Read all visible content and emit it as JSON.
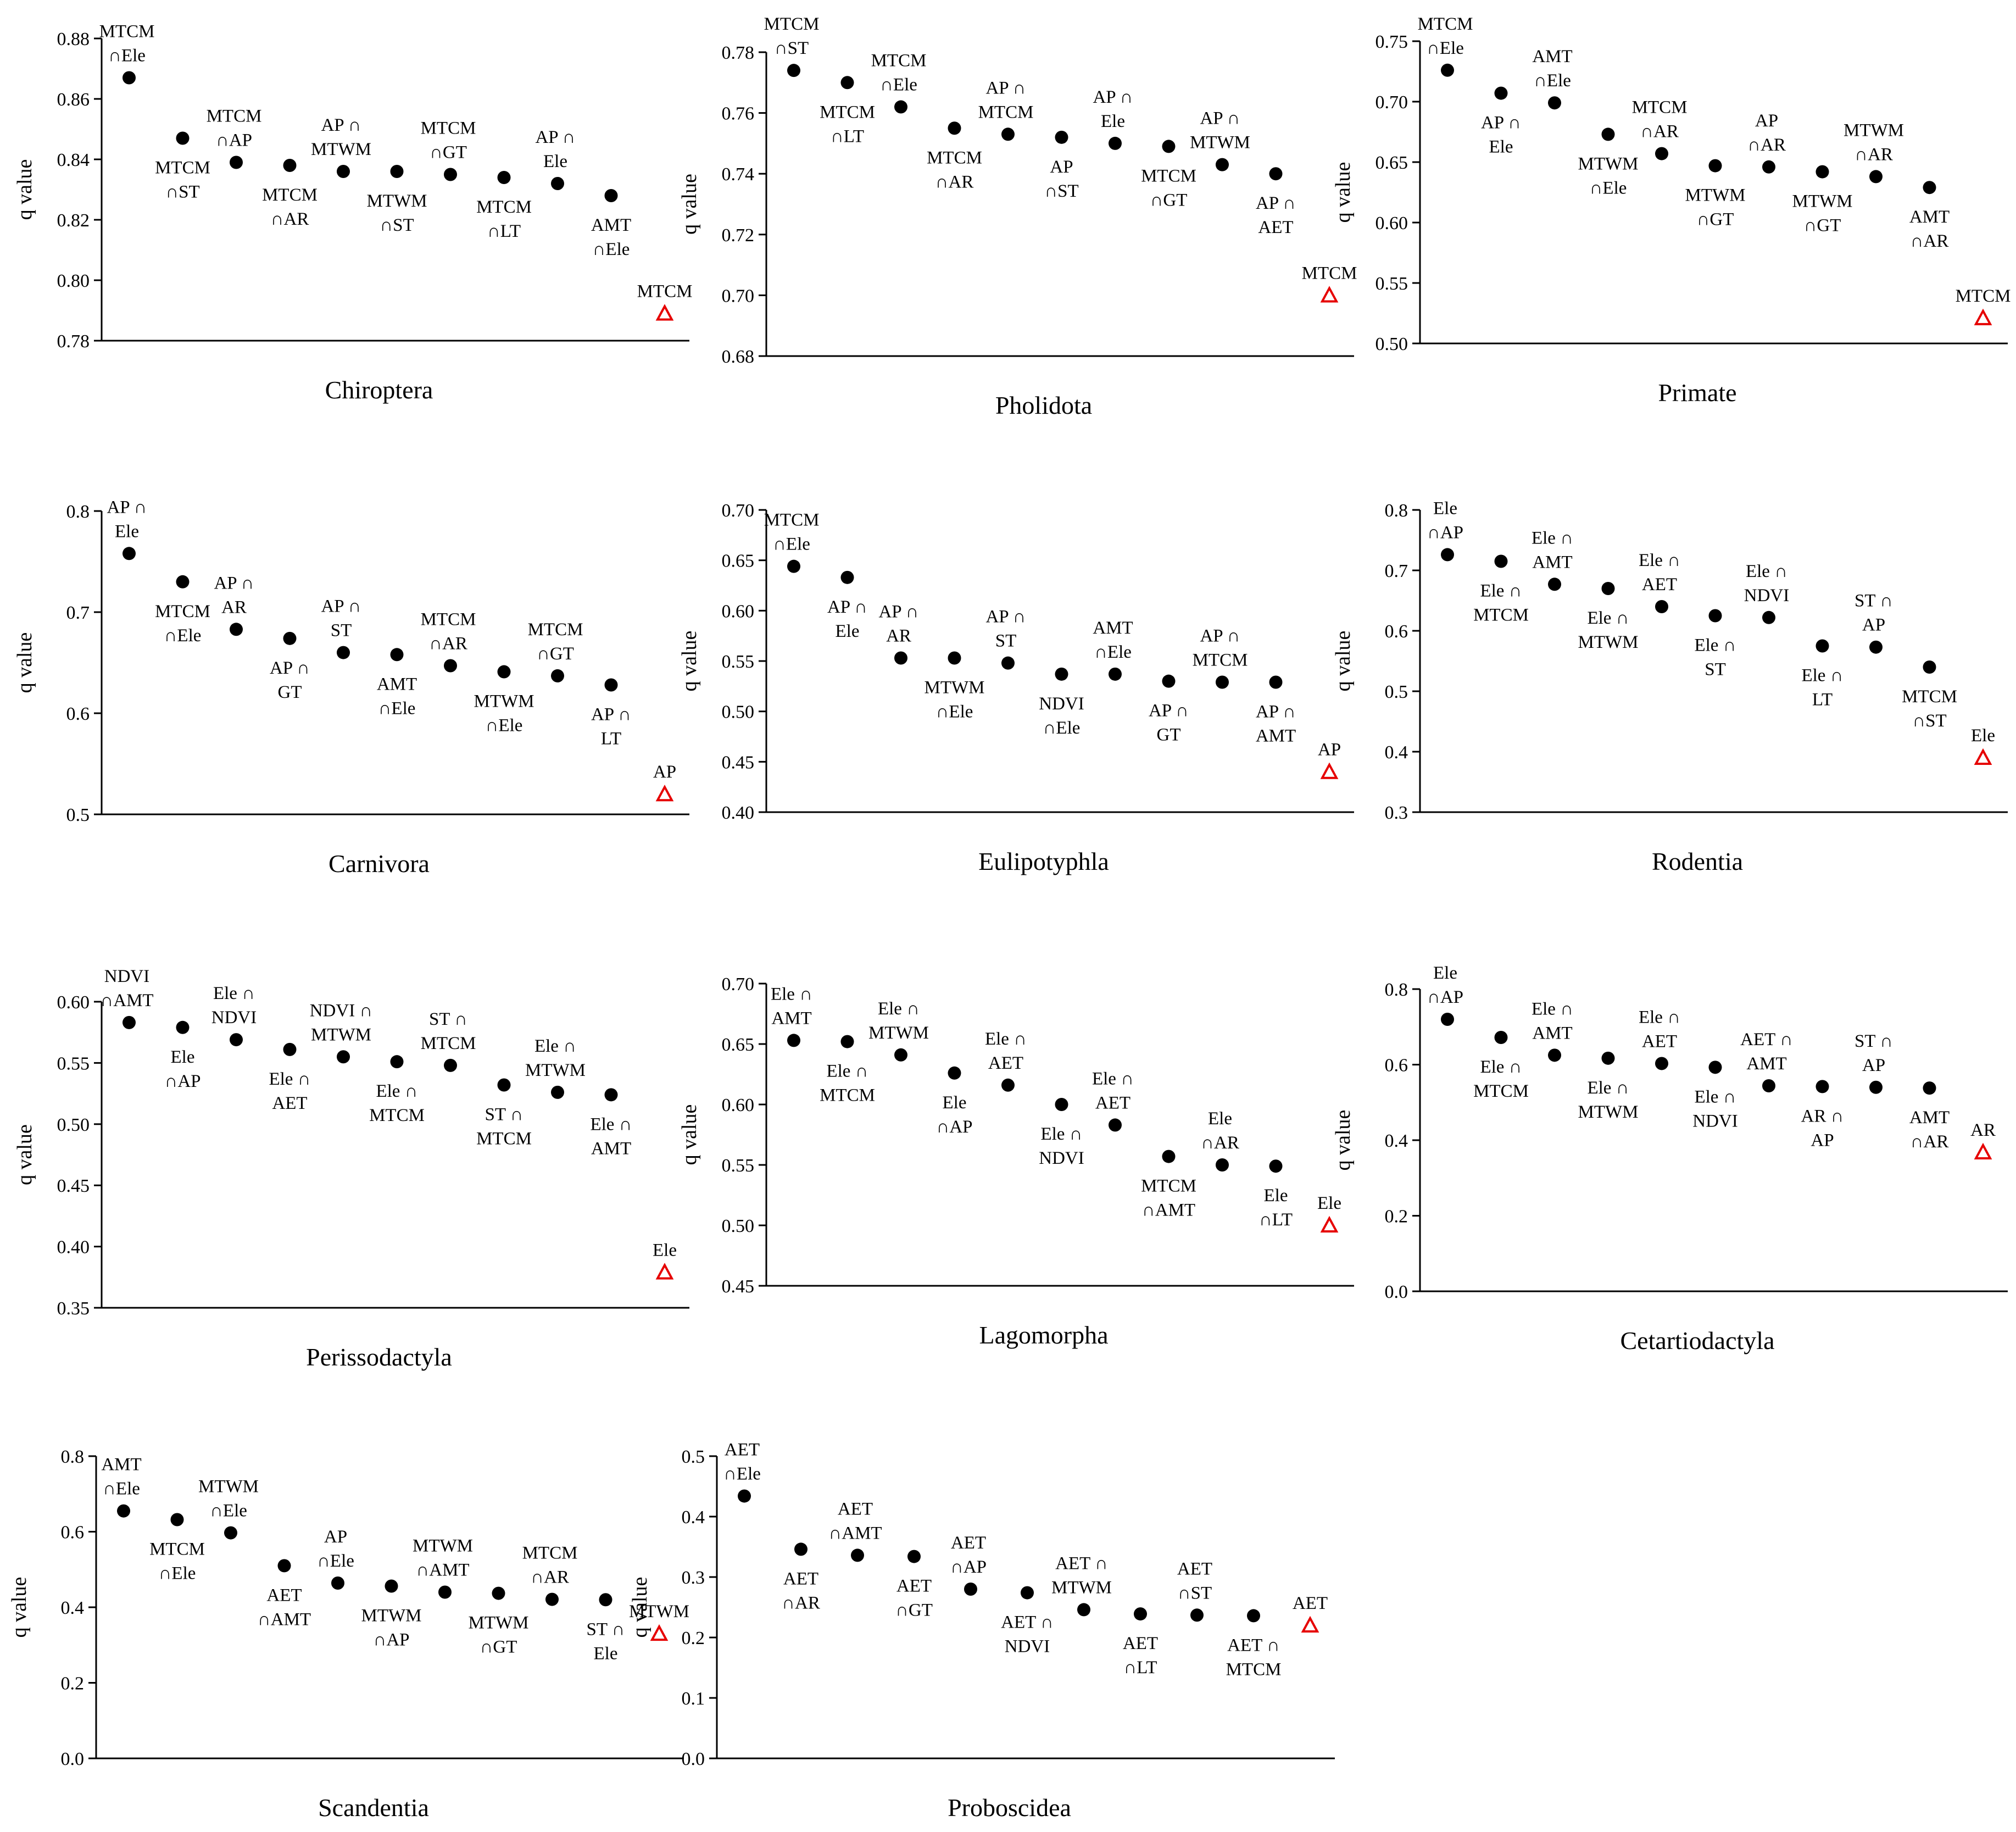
{
  "chart_data": [
    {
      "type": "scatter",
      "title": "Chiroptera",
      "ylabel": "q value",
      "ylim": [
        0.78,
        0.88
      ],
      "yticks": [
        "0.78",
        "0.80",
        "0.82",
        "0.84",
        "0.86",
        "0.88"
      ],
      "points": [
        {
          "label": "MTCM\n∩Ele",
          "value": 0.867
        },
        {
          "label": "MTCM\n∩ST",
          "value": 0.847
        },
        {
          "label": "MTCM\n∩AP",
          "value": 0.839
        },
        {
          "label": "MTCM\n∩AR",
          "value": 0.838
        },
        {
          "label": "AP ∩\nMTWM",
          "value": 0.836
        },
        {
          "label": "MTWM\n∩ST",
          "value": 0.836
        },
        {
          "label": "MTCM\n∩GT",
          "value": 0.835
        },
        {
          "label": "MTCM\n∩LT",
          "value": 0.834
        },
        {
          "label": "AP ∩\nEle",
          "value": 0.832
        },
        {
          "label": "AMT\n∩Ele",
          "value": 0.828
        },
        {
          "label": "MTCM",
          "value": 0.789,
          "single": true
        }
      ]
    },
    {
      "type": "scatter",
      "title": "Pholidota",
      "ylabel": "q value",
      "ylim": [
        0.68,
        0.78
      ],
      "yticks": [
        "0.68",
        "0.70",
        "0.72",
        "0.74",
        "0.76",
        "0.78"
      ],
      "points": [
        {
          "label": "MTCM\n∩ST",
          "value": 0.774
        },
        {
          "label": "MTCM\n∩LT",
          "value": 0.77
        },
        {
          "label": "MTCM\n∩Ele",
          "value": 0.762
        },
        {
          "label": "MTCM\n∩AR",
          "value": 0.755
        },
        {
          "label": "AP ∩\nMTCM",
          "value": 0.753
        },
        {
          "label": "AP\n∩ST",
          "value": 0.752
        },
        {
          "label": "AP ∩\nEle",
          "value": 0.75
        },
        {
          "label": "MTCM\n∩GT",
          "value": 0.749
        },
        {
          "label": "AP ∩\nMTWM",
          "value": 0.743
        },
        {
          "label": "AP ∩\nAET",
          "value": 0.74
        },
        {
          "label": "MTCM",
          "value": 0.7,
          "single": true
        }
      ]
    },
    {
      "type": "scatter",
      "title": "Primate",
      "ylabel": "q value",
      "ylim": [
        0.5,
        0.75
      ],
      "yticks": [
        "0.50",
        "0.55",
        "0.60",
        "0.65",
        "0.70",
        "0.75"
      ],
      "points": [
        {
          "label": "MTCM\n∩Ele",
          "value": 0.726
        },
        {
          "label": "AP ∩\nEle",
          "value": 0.707
        },
        {
          "label": "AMT\n∩Ele",
          "value": 0.699
        },
        {
          "label": "MTWM\n∩Ele",
          "value": 0.673
        },
        {
          "label": "MTCM\n∩AR",
          "value": 0.657
        },
        {
          "label": "MTWM\n∩GT",
          "value": 0.647
        },
        {
          "label": "AP\n∩AR",
          "value": 0.646
        },
        {
          "label": "MTWM\n∩GT",
          "value": 0.642
        },
        {
          "label": "MTWM\n∩AR",
          "value": 0.638
        },
        {
          "label": "AMT\n∩AR",
          "value": 0.629
        },
        {
          "label": "MTCM",
          "value": 0.521,
          "single": true
        }
      ]
    },
    {
      "type": "scatter",
      "title": "Carnivora",
      "ylabel": "q value",
      "ylim": [
        0.5,
        0.8
      ],
      "yticks": [
        "0.5",
        "0.6",
        "0.7",
        "0.8"
      ],
      "points": [
        {
          "label": "AP ∩\nEle",
          "value": 0.758
        },
        {
          "label": "MTCM\n∩Ele",
          "value": 0.73
        },
        {
          "label": "AP ∩\nAR",
          "value": 0.683
        },
        {
          "label": "AP ∩\nGT",
          "value": 0.674
        },
        {
          "label": "AP ∩\nST",
          "value": 0.66
        },
        {
          "label": "AMT\n∩Ele",
          "value": 0.658
        },
        {
          "label": "MTCM\n∩AR",
          "value": 0.647
        },
        {
          "label": "MTWM\n∩Ele",
          "value": 0.641
        },
        {
          "label": "MTCM\n∩GT",
          "value": 0.637
        },
        {
          "label": "AP ∩\nLT",
          "value": 0.628
        },
        {
          "label": "AP",
          "value": 0.52,
          "single": true
        }
      ]
    },
    {
      "type": "scatter",
      "title": "Eulipotyphla",
      "ylabel": "q value",
      "ylim": [
        0.4,
        0.7
      ],
      "yticks": [
        "0.40",
        "0.45",
        "0.50",
        "0.55",
        "0.60",
        "0.65",
        "0.70"
      ],
      "points": [
        {
          "label": "MTCM\n∩Ele",
          "value": 0.644
        },
        {
          "label": "AP ∩\nEle",
          "value": 0.633
        },
        {
          "label": "AP ∩\nAR",
          "value": 0.553
        },
        {
          "label": "MTWM\n∩Ele",
          "value": 0.553
        },
        {
          "label": "AP ∩\nST",
          "value": 0.548
        },
        {
          "label": "NDVI\n∩Ele",
          "value": 0.537
        },
        {
          "label": "AMT\n∩Ele",
          "value": 0.537
        },
        {
          "label": "AP ∩\nGT",
          "value": 0.53
        },
        {
          "label": "AP ∩\nMTCM",
          "value": 0.529
        },
        {
          "label": "AP ∩\nAMT",
          "value": 0.529
        },
        {
          "label": "AP",
          "value": 0.44,
          "single": true
        }
      ]
    },
    {
      "type": "scatter",
      "title": "Rodentia",
      "ylabel": "q value",
      "ylim": [
        0.3,
        0.8
      ],
      "yticks": [
        "0.3",
        "0.4",
        "0.5",
        "0.6",
        "0.7",
        "0.8"
      ],
      "points": [
        {
          "label": "Ele\n∩AP",
          "value": 0.726
        },
        {
          "label": "Ele ∩\nMTCM",
          "value": 0.715
        },
        {
          "label": "Ele ∩\nAMT",
          "value": 0.677
        },
        {
          "label": "Ele ∩\nMTWM",
          "value": 0.67
        },
        {
          "label": "Ele ∩\nAET",
          "value": 0.64
        },
        {
          "label": "Ele ∩\nST",
          "value": 0.625
        },
        {
          "label": "Ele ∩\nNDVI",
          "value": 0.622
        },
        {
          "label": "Ele ∩\nLT",
          "value": 0.575
        },
        {
          "label": "ST ∩\nAP",
          "value": 0.573
        },
        {
          "label": "MTCM\n∩ST",
          "value": 0.54
        },
        {
          "label": "Ele",
          "value": 0.39,
          "single": true
        }
      ]
    },
    {
      "type": "scatter",
      "title": "Perissodactyla",
      "ylabel": "q value",
      "ylim": [
        0.35,
        0.6
      ],
      "yticks": [
        "0.35",
        "0.40",
        "0.45",
        "0.50",
        "0.55",
        "0.60"
      ],
      "points": [
        {
          "label": "NDVI\n∩AMT",
          "value": 0.583
        },
        {
          "label": "Ele\n∩AP",
          "value": 0.579
        },
        {
          "label": "Ele ∩\nNDVI",
          "value": 0.569
        },
        {
          "label": "Ele ∩\nAET",
          "value": 0.561
        },
        {
          "label": "NDVI ∩\nMTWM",
          "value": 0.555
        },
        {
          "label": "Ele ∩\nMTCM",
          "value": 0.551
        },
        {
          "label": "ST ∩\nMTCM",
          "value": 0.548
        },
        {
          "label": "ST ∩\nMTCM",
          "value": 0.532
        },
        {
          "label": "Ele ∩\nMTWM",
          "value": 0.526
        },
        {
          "label": "Ele ∩\nAMT",
          "value": 0.524
        },
        {
          "label": "Ele",
          "value": 0.379,
          "single": true
        }
      ]
    },
    {
      "type": "scatter",
      "title": "Lagomorpha",
      "ylabel": "q value",
      "ylim": [
        0.45,
        0.7
      ],
      "yticks": [
        "0.45",
        "0.50",
        "0.55",
        "0.60",
        "0.65",
        "0.70"
      ],
      "points": [
        {
          "label": "Ele ∩\nAMT",
          "value": 0.653
        },
        {
          "label": "Ele ∩\nMTCM",
          "value": 0.652
        },
        {
          "label": "Ele ∩\nMTWM",
          "value": 0.641
        },
        {
          "label": "Ele\n∩AP",
          "value": 0.626
        },
        {
          "label": "Ele ∩\nAET",
          "value": 0.616
        },
        {
          "label": "Ele ∩\nNDVI",
          "value": 0.6
        },
        {
          "label": "Ele ∩\nAET",
          "value": 0.583
        },
        {
          "label": "MTCM\n∩AMT",
          "value": 0.557
        },
        {
          "label": "Ele\n∩AR",
          "value": 0.55
        },
        {
          "label": "Ele\n∩LT",
          "value": 0.549
        },
        {
          "label": "Ele",
          "value": 0.5,
          "single": true
        }
      ]
    },
    {
      "type": "scatter",
      "title": "Cetartiodactyla",
      "ylabel": "q value",
      "ylim": [
        0.0,
        0.8
      ],
      "yticks": [
        "0.0",
        "0.2",
        "0.4",
        "0.6",
        "0.8"
      ],
      "points": [
        {
          "label": "Ele\n∩AP",
          "value": 0.72
        },
        {
          "label": "Ele ∩\nMTCM",
          "value": 0.672
        },
        {
          "label": "Ele ∩\nAMT",
          "value": 0.625
        },
        {
          "label": "Ele ∩\nMTWM",
          "value": 0.617
        },
        {
          "label": "Ele ∩\nAET",
          "value": 0.603
        },
        {
          "label": "Ele ∩\nNDVI",
          "value": 0.593
        },
        {
          "label": "AET ∩\nAMT",
          "value": 0.544
        },
        {
          "label": "AR ∩\nAP",
          "value": 0.542
        },
        {
          "label": "ST ∩\nAP",
          "value": 0.54
        },
        {
          "label": "AMT\n∩AR",
          "value": 0.538
        },
        {
          "label": "AR",
          "value": 0.368,
          "single": true
        }
      ]
    },
    {
      "type": "scatter",
      "title": "Scandentia",
      "ylabel": "q value",
      "ylim": [
        0.0,
        0.8
      ],
      "yticks": [
        "0.0",
        "0.2",
        "0.4",
        "0.6",
        "0.8"
      ],
      "points": [
        {
          "label": "AMT\n∩Ele",
          "value": 0.655
        },
        {
          "label": "MTCM\n∩Ele",
          "value": 0.632
        },
        {
          "label": "MTWM\n∩Ele",
          "value": 0.597
        },
        {
          "label": "AET\n∩AMT",
          "value": 0.51
        },
        {
          "label": "AP\n∩Ele",
          "value": 0.464
        },
        {
          "label": "MTWM\n∩AP",
          "value": 0.456
        },
        {
          "label": "MTWM\n∩AMT",
          "value": 0.44
        },
        {
          "label": "MTWM\n∩GT",
          "value": 0.437
        },
        {
          "label": "MTCM\n∩AR",
          "value": 0.421
        },
        {
          "label": "ST ∩\nEle",
          "value": 0.42
        },
        {
          "label": "MTWM",
          "value": 0.33,
          "single": true
        }
      ]
    },
    {
      "type": "scatter",
      "title": "Proboscidea",
      "ylabel": "q value",
      "ylim": [
        0.0,
        0.5
      ],
      "yticks": [
        "0.0",
        "0.1",
        "0.2",
        "0.3",
        "0.4",
        "0.5"
      ],
      "points": [
        {
          "label": "AET\n∩Ele",
          "value": 0.434
        },
        {
          "label": "AET\n∩AR",
          "value": 0.346
        },
        {
          "label": "AET\n∩AMT",
          "value": 0.336
        },
        {
          "label": "AET\n∩GT",
          "value": 0.334
        },
        {
          "label": "AET\n∩AP",
          "value": 0.28
        },
        {
          "label": "AET ∩\nNDVI",
          "value": 0.274
        },
        {
          "label": "AET ∩\nMTWM",
          "value": 0.246
        },
        {
          "label": "AET\n∩LT",
          "value": 0.239
        },
        {
          "label": "AET\n∩ST",
          "value": 0.237
        },
        {
          "label": "AET ∩\nMTCM",
          "value": 0.236
        },
        {
          "label": "AET",
          "value": 0.22,
          "single": true
        }
      ]
    }
  ],
  "colors": {
    "interaction_marker": "#000000",
    "single_factor_marker": "#e60000"
  }
}
